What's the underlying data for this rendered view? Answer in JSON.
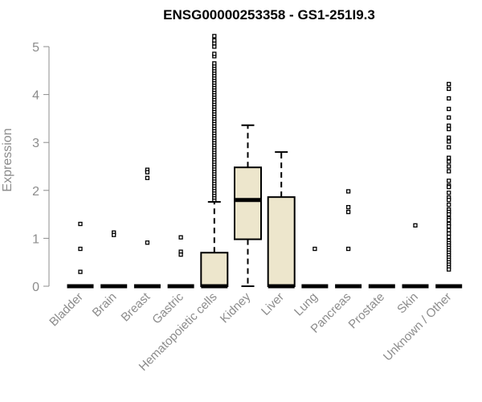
{
  "chart_data": {
    "type": "box",
    "title": "ENSG00000253358 - GS1-251I9.3",
    "xlabel": "",
    "ylabel": "Expression",
    "ylim": [
      0,
      5.3
    ],
    "yticks": [
      0,
      1,
      2,
      3,
      4,
      5
    ],
    "box_fill": "#ede6cc",
    "categories": [
      "Bladder",
      "Brain",
      "Breast",
      "Gastric",
      "Hematopoietic cells",
      "Kidney",
      "Liver",
      "Lung",
      "Pancreas",
      "Prostate",
      "Skin",
      "Unknown / Other"
    ],
    "boxes": [
      {
        "min": 0,
        "q1": 0,
        "median": 0,
        "q3": 0,
        "max": 0,
        "outliers": [
          1.3,
          0.78,
          0.3
        ]
      },
      {
        "min": 0,
        "q1": 0,
        "median": 0,
        "q3": 0,
        "max": 0,
        "outliers": [
          1.12,
          1.07
        ]
      },
      {
        "min": 0,
        "q1": 0,
        "median": 0,
        "q3": 0,
        "max": 0,
        "outliers": [
          2.43,
          2.38,
          2.26,
          0.91
        ]
      },
      {
        "min": 0,
        "q1": 0,
        "median": 0,
        "q3": 0,
        "max": 0,
        "outliers": [
          1.02,
          0.72,
          0.66
        ]
      },
      {
        "min": 0,
        "q1": 0,
        "median": 0,
        "q3": 0.7,
        "max": 1.76,
        "outliers": [
          1.8,
          1.85,
          1.9,
          1.95,
          2.0,
          2.05,
          2.1,
          2.15,
          2.2,
          2.25,
          2.3,
          2.35,
          2.4,
          2.45,
          2.5,
          2.55,
          2.6,
          2.65,
          2.7,
          2.75,
          2.8,
          2.85,
          2.9,
          2.95,
          3.0,
          3.05,
          3.1,
          3.15,
          3.2,
          3.25,
          3.3,
          3.35,
          3.4,
          3.45,
          3.5,
          3.55,
          3.6,
          3.65,
          3.7,
          3.75,
          3.8,
          3.85,
          3.9,
          3.95,
          4.0,
          4.05,
          4.1,
          4.15,
          4.2,
          4.25,
          4.3,
          4.35,
          4.4,
          4.45,
          4.5,
          4.55,
          4.6,
          4.65,
          4.8,
          4.85,
          5.0,
          5.07,
          5.13,
          5.22
        ]
      },
      {
        "min": 0,
        "q1": 0.98,
        "median": 1.8,
        "q3": 2.48,
        "max": 3.36,
        "outliers": []
      },
      {
        "min": 0,
        "q1": 0,
        "median": 0,
        "q3": 1.86,
        "max": 2.8,
        "outliers": []
      },
      {
        "min": 0,
        "q1": 0,
        "median": 0,
        "q3": 0,
        "max": 0,
        "outliers": [
          0.78
        ]
      },
      {
        "min": 0,
        "q1": 0,
        "median": 0,
        "q3": 0,
        "max": 0,
        "outliers": [
          1.98,
          1.65,
          1.55,
          0.78
        ]
      },
      {
        "min": 0,
        "q1": 0,
        "median": 0,
        "q3": 0,
        "max": 0,
        "outliers": []
      },
      {
        "min": 0,
        "q1": 0,
        "median": 0,
        "q3": 0,
        "max": 0,
        "outliers": [
          1.27
        ]
      },
      {
        "min": 0,
        "q1": 0,
        "median": 0,
        "q3": 0,
        "max": 0,
        "outliers": [
          4.22,
          4.12,
          3.92,
          3.7,
          3.52,
          3.35,
          3.28,
          3.1,
          3.02,
          2.9,
          2.68,
          2.6,
          2.5,
          2.4,
          2.2,
          2.1,
          2.07,
          1.95,
          1.85,
          1.8,
          1.7,
          1.6,
          1.55,
          1.5,
          1.42,
          1.38,
          1.3,
          1.25,
          1.17,
          1.1,
          1.03,
          0.95,
          0.9,
          0.85,
          0.8,
          0.75,
          0.7,
          0.65,
          0.6,
          0.55,
          0.5,
          0.45,
          0.4,
          0.35
        ]
      }
    ]
  }
}
